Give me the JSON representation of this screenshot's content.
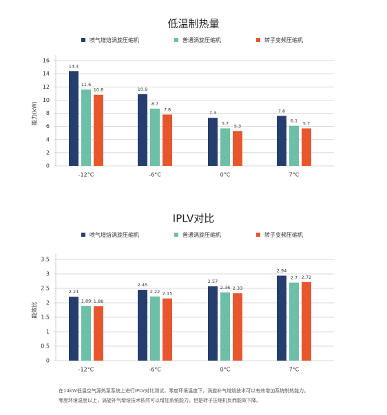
{
  "chart_data": [
    {
      "type": "bar",
      "title": "低温制热量",
      "ylabel": "能力(kW)",
      "categories": [
        "-12°C",
        "-6°C",
        "0°C",
        "7°C"
      ],
      "series": [
        {
          "name": "喷气增焓涡旋压缩机",
          "color": "#253e6e",
          "values": [
            14.4,
            10.9,
            7.3,
            7.6
          ]
        },
        {
          "name": "普通涡旋压缩机",
          "color": "#6dbfa8",
          "values": [
            11.6,
            8.7,
            5.7,
            6.1
          ]
        },
        {
          "name": "转子变频压缩机",
          "color": "#e8562e",
          "values": [
            10.8,
            7.8,
            5.3,
            5.7
          ]
        }
      ],
      "ylim": [
        0,
        16
      ],
      "yticks": [
        0,
        2,
        4,
        6,
        8,
        10,
        12,
        14,
        16
      ],
      "grid": true
    },
    {
      "type": "bar",
      "title": "IPLV对比",
      "ylabel": "能效比",
      "categories": [
        "-12°C",
        "-6°C",
        "0°C",
        "7°C"
      ],
      "series": [
        {
          "name": "喷气增焓涡旋压缩机",
          "color": "#253e6e",
          "values": [
            2.21,
            2.45,
            2.57,
            2.94
          ]
        },
        {
          "name": "普通涡旋压缩机",
          "color": "#6dbfa8",
          "values": [
            1.89,
            2.22,
            2.36,
            2.7
          ]
        },
        {
          "name": "转子变频压缩机",
          "color": "#e8562e",
          "values": [
            1.88,
            2.15,
            2.33,
            2.72
          ]
        }
      ],
      "ylim": [
        0,
        3.5
      ],
      "yticks": [
        0,
        0.5,
        1,
        1.5,
        2,
        2.5,
        3,
        3.5
      ],
      "grid": true
    }
  ],
  "caption": [
    "在14kW低温空气源热泵系统上进行IPLV对比测试，零度环境温度下，涡旋补气增焓技术可以有效增加系统制热能力。",
    "零度环境温度以上，涡旋补气增焓技术依然可以增加系统能力，但是转子压缩机反而能效下降。"
  ]
}
